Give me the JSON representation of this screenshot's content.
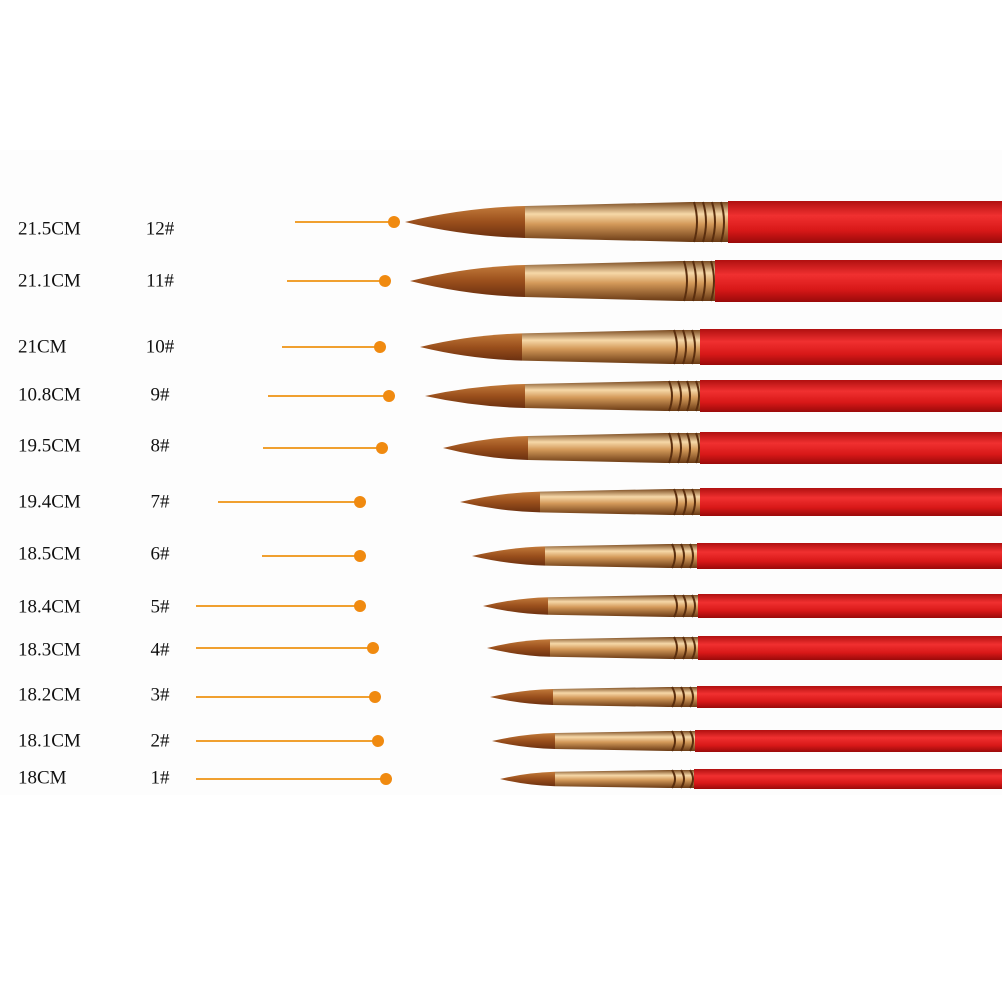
{
  "brushes": [
    {
      "length": "21.5CM",
      "size": "12#"
    },
    {
      "length": "21.1CM",
      "size": "11#"
    },
    {
      "length": "21CM",
      "size": "10#"
    },
    {
      "length": "10.8CM",
      "size": "9#"
    },
    {
      "length": "19.5CM",
      "size": "8#"
    },
    {
      "length": "19.4CM",
      "size": "7#"
    },
    {
      "length": "18.5CM",
      "size": "6#"
    },
    {
      "length": "18.4CM",
      "size": "5#"
    },
    {
      "length": "18.3CM",
      "size": "4#"
    },
    {
      "length": "18.2CM",
      "size": "3#"
    },
    {
      "length": "18.1CM",
      "size": "2#"
    },
    {
      "length": "18CM",
      "size": "1#"
    }
  ]
}
